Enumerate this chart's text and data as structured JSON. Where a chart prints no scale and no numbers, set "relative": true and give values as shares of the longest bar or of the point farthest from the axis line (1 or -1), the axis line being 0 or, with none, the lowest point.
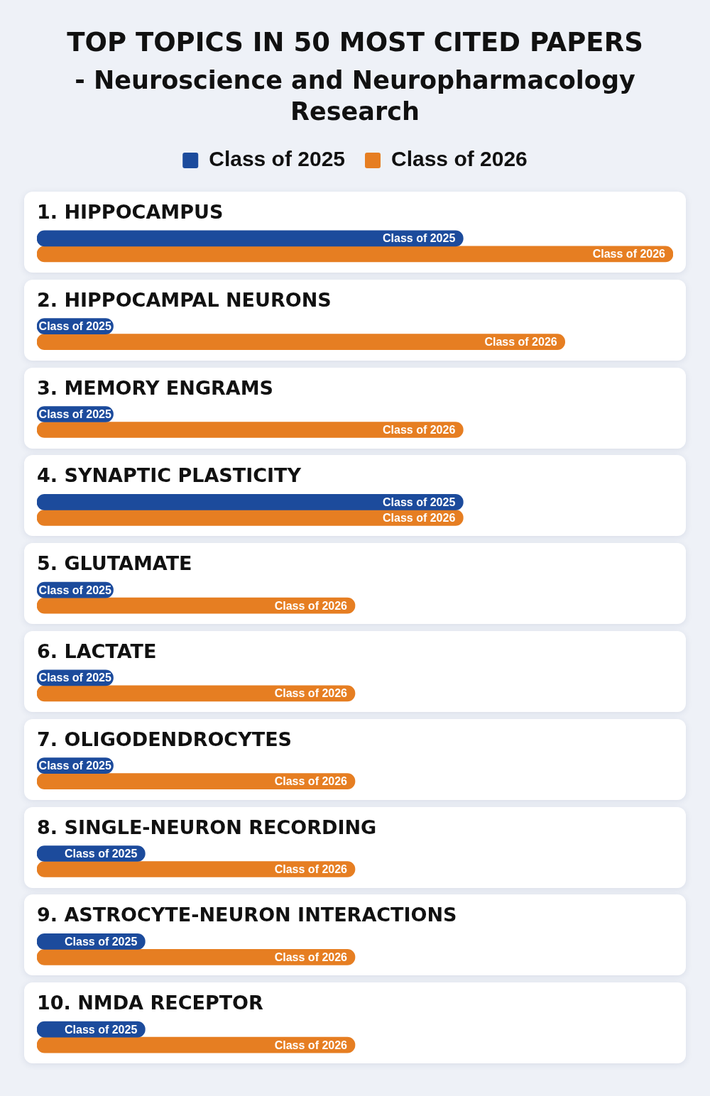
{
  "chart_data": {
    "type": "bar",
    "orientation": "horizontal",
    "relative": true,
    "legend": "top",
    "title": "TOP TOPICS IN 50 MOST CITED PAPERS",
    "subtitle": "- Neuroscience and Neuropharmacology Research",
    "categories": [
      "1. HIPPOCAMPUS",
      "2. HIPPOCAMPAL NEURONS",
      "3. MEMORY ENGRAMS",
      "4. SYNAPTIC PLASTICITY",
      "5. GLUTAMATE",
      "6. LACTATE",
      "7. OLIGODENDROCYTES",
      "8. SINGLE-NEURON RECORDING",
      "9. ASTROCYTE-NEURON INTERACTIONS",
      "10. NMDA RECEPTOR"
    ],
    "series": [
      {
        "name": "Class of 2025",
        "color": "#1c4b9c",
        "values": [
          0.67,
          0.12,
          0.12,
          0.67,
          0.12,
          0.12,
          0.12,
          0.17,
          0.17,
          0.17
        ]
      },
      {
        "name": "Class of 2026",
        "color": "#e67e22",
        "values": [
          1,
          0.83,
          0.67,
          0.67,
          0.5,
          0.5,
          0.5,
          0.5,
          0.5,
          0.5
        ]
      }
    ]
  }
}
